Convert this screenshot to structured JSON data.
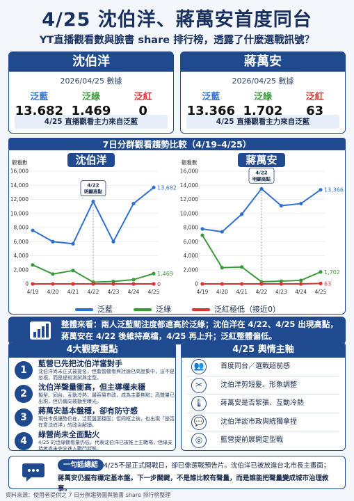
{
  "header": {
    "title": "4/25 沈伯洋、蔣萬安首度同台",
    "subtitle": "YT直播觀看數與臉書 share 排行榜，透露了什麼選戰訊號？"
  },
  "candidates": [
    {
      "name": "沈伯洋",
      "date": "2026/04/25 數據",
      "stats": [
        {
          "label": "泛藍",
          "value": "13,682"
        },
        {
          "label": "泛綠",
          "value": "1,469"
        },
        {
          "label": "泛紅",
          "value": "0"
        }
      ],
      "footer": "4/25 直播觀看主力來自泛藍"
    },
    {
      "name": "蔣萬安",
      "date": "2026/04/25 數據",
      "stats": [
        {
          "label": "泛藍",
          "value": "13,366"
        },
        {
          "label": "泛綠",
          "value": "1,702"
        },
        {
          "label": "泛紅",
          "value": "63"
        }
      ],
      "footer": "4/25 直播觀看主力來自泛藍"
    }
  ],
  "trend": {
    "band_title": "7日分群觀看趨勢比較（4/19–4/25）",
    "legend": [
      {
        "label": "泛藍",
        "color": "#2f6fd1"
      },
      {
        "label": "泛綠",
        "color": "#3a9a3a"
      },
      {
        "label": "泛紅極低（接近0）",
        "color": "#d93333"
      }
    ]
  },
  "chart_data": [
    {
      "type": "line",
      "title": "沈伯洋",
      "ylabel": "觀看數",
      "ylim": [
        0,
        16000
      ],
      "yticks": [
        "0",
        "2,000",
        "4,000",
        "6,000",
        "8,000",
        "10,000",
        "12,000",
        "14,000",
        "16,000"
      ],
      "categories": [
        "4/19",
        "4/20",
        "4/21",
        "4/22",
        "4/23",
        "4/24",
        "4/25"
      ],
      "series": [
        {
          "name": "泛藍",
          "color": "#2f6fd1",
          "values": [
            7600,
            6000,
            5700,
            11700,
            6000,
            11400,
            13682
          ]
        },
        {
          "name": "泛綠",
          "color": "#3a9a3a",
          "values": [
            2700,
            1400,
            1900,
            250,
            350,
            600,
            1469
          ]
        },
        {
          "name": "泛紅",
          "color": "#d93333",
          "values": [
            0,
            0,
            0,
            0,
            0,
            0,
            0
          ]
        }
      ],
      "end_labels": [
        "13,682",
        "1,469",
        "0"
      ],
      "annotation": {
        "text1": "4/22",
        "text2": "明顯高點",
        "category": "4/22"
      }
    },
    {
      "type": "line",
      "title": "蔣萬安",
      "ylabel": "觀看數",
      "ylim": [
        0,
        16000
      ],
      "yticks": [
        "0",
        "2,000",
        "4,000",
        "6,000",
        "8,000",
        "10,000",
        "12,000",
        "14,000",
        "16,000"
      ],
      "categories": [
        "4/19",
        "4/20",
        "4/21",
        "4/22",
        "4/23",
        "4/24",
        "4/25"
      ],
      "series": [
        {
          "name": "泛藍",
          "color": "#2f6fd1",
          "values": [
            7800,
            7400,
            9900,
            13500,
            11100,
            11400,
            13366
          ]
        },
        {
          "name": "泛綠",
          "color": "#3a9a3a",
          "values": [
            6900,
            2300,
            2400,
            300,
            400,
            500,
            1702
          ]
        },
        {
          "name": "泛紅",
          "color": "#d93333",
          "values": [
            0,
            0,
            0,
            0,
            0,
            0,
            63
          ]
        }
      ],
      "end_labels": [
        "13,366",
        "1,702",
        "63"
      ],
      "annotation": {
        "text1": "4/22",
        "text2": "明顯高點",
        "category": "4/22"
      }
    }
  ],
  "summary": {
    "line1": "整體來看：兩人泛藍關注度都遠高於泛綠；沈伯洋在 4/22、4/25 出現高點，",
    "line2": "蔣萬安在 4/22 後維持高檔，4/25 再上升；泛紅整體偏低。"
  },
  "observations": {
    "title": "4大觀察重點",
    "items": [
      {
        "num": "1",
        "title": "藍營已先把沈伯洋當對手",
        "desc": "沈伯洋尚未正式被提名，但藍營觀看與討論已高度集中，這不是忽視，而是提前測試與定型。"
      },
      {
        "num": "2",
        "title": "沈伯洋聲量衝高，但主導權未穩",
        "desc": "擬型、同台、互動冷熱，最容易市政，成為主要焦點；高聲量已出現，但仍偏向被動型曝光。"
      },
      {
        "num": "3",
        "title": "蔣萬安基本盤穩，卻有防守感",
        "desc": "現任市長優勢仍在，泛藍盤面穩固；但同框之後，也出現「是否在意沈伯洋」的政治解讀。"
      },
      {
        "num": "4",
        "title": "綠營尚未全面點火",
        "desc": "4/25 的泛綠觀看量仍低，代表沈伯洋已被推上主戰場，但綠支持者尚未完全進入戰鬥狀態。"
      }
    ]
  },
  "opinion": {
    "title": "4/25 輿情主軸",
    "items": [
      {
        "icon": "people-icon",
        "glyph": "👥",
        "text": "首度同台／選戰超前感"
      },
      {
        "icon": "scissors-icon",
        "glyph": "✂",
        "text": "沈伯洋剪短髮、形象調整"
      },
      {
        "icon": "thermometer-icon",
        "glyph": "🌡",
        "text": "蔣萬安是否緊張、互動冷熱"
      },
      {
        "icon": "chat-icon",
        "glyph": "💬",
        "text": "沈伯洋談市政與統獨拿捏"
      },
      {
        "icon": "target-icon",
        "glyph": "◎",
        "text": "藍營提前展開定型戰"
      }
    ]
  },
  "conclusion": {
    "badge": "一句話總結",
    "line1": "4/25不是正式開戰日，卻已像選戰預告片。沈伯洋已被放進台北市長主畫面；",
    "line2": "蔣萬安仍握有穩定基本盤。下一步關鍵，不是誰比較有聲量，而是誰能把聲量變成城市治理敘事。"
  },
  "footer": "資料來源：使用者提供之 7 日分群趨勢圖與臉書 share 排行榜整理"
}
